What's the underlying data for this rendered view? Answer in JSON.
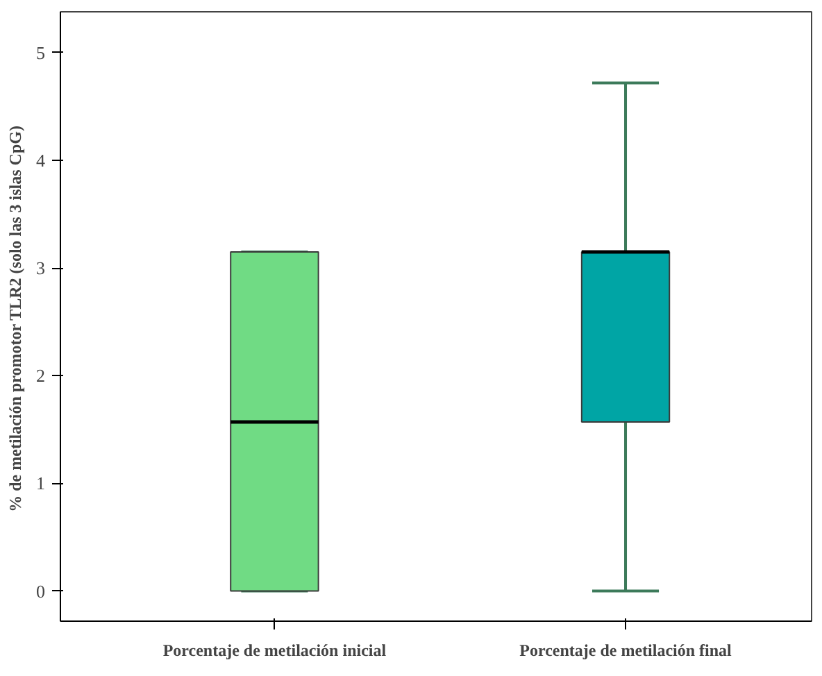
{
  "chart_data": {
    "type": "box",
    "ylabel": "% de metilación  promotor TLR2 (solo las 3 islas CpG)",
    "categories": [
      "Porcentaje de metilación inicial",
      "Porcentaje de metilación final"
    ],
    "colors": [
      "#70db84",
      "#00a5a5"
    ],
    "boxes": [
      {
        "low": 0,
        "q1": 0,
        "median": 1.57,
        "q3": 3.15,
        "high": 3.15
      },
      {
        "low": 0,
        "q1": 1.57,
        "median": 3.15,
        "q3": 3.15,
        "high": 4.72
      }
    ],
    "ylim": [
      -0.28,
      5.38
    ],
    "yticks": [
      0,
      1,
      2,
      3,
      4,
      5
    ],
    "grid": false
  }
}
